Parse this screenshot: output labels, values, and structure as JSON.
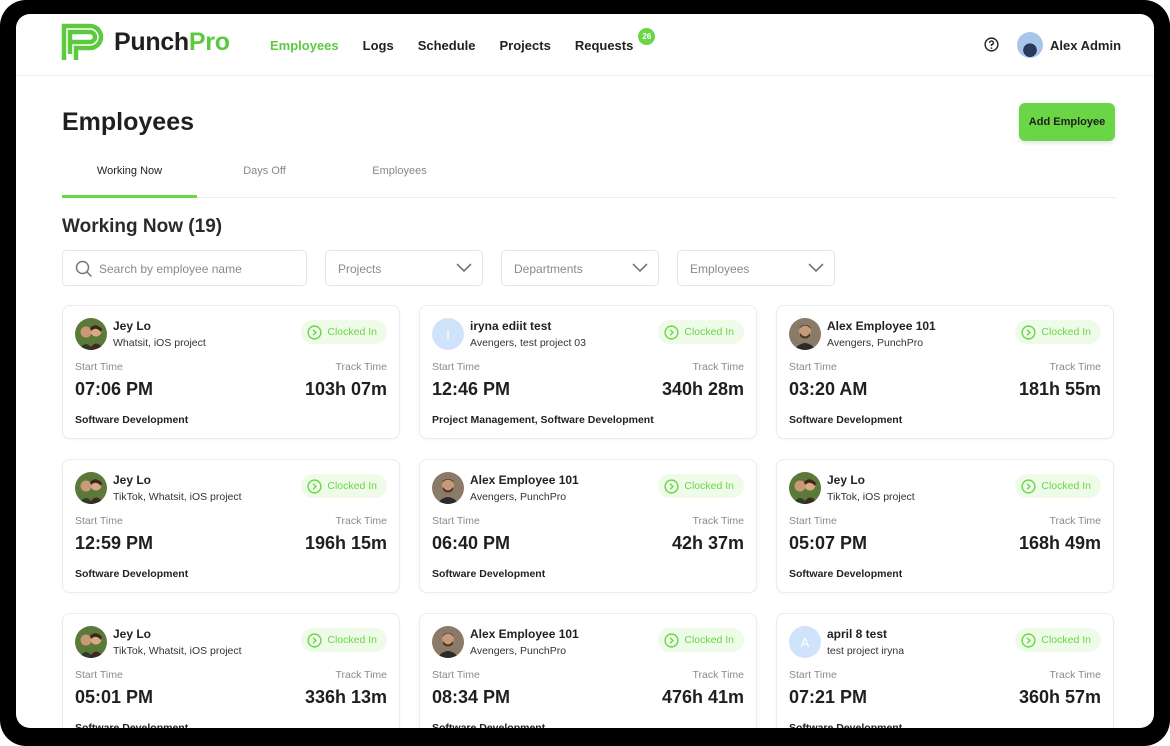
{
  "brand": {
    "name_a": "Punch",
    "name_b": "Pro"
  },
  "nav": {
    "items": [
      "Employees",
      "Logs",
      "Schedule",
      "Projects",
      "Requests"
    ],
    "requests_badge": "26"
  },
  "user": {
    "name": "Alex Admin"
  },
  "page": {
    "title": "Employees",
    "add_button": "Add Employee"
  },
  "tabs": [
    "Working Now",
    "Days Off",
    "Employees"
  ],
  "section": {
    "title": "Working Now (19)"
  },
  "filters": {
    "search_placeholder": "Search by employee name",
    "projects": "Projects",
    "departments": "Departments",
    "employees": "Employees"
  },
  "labels": {
    "start_time": "Start Time",
    "track_time": "Track Time",
    "status": "Clocked In"
  },
  "colors": {
    "accent": "#6ad646",
    "status_bg": "#eefbe9",
    "brand_green": "#5cc93f"
  },
  "cards": [
    {
      "name": "Jey Lo",
      "projects": "Whatsit, iOS project",
      "start": "07:06 PM",
      "track": "103h 07m",
      "dept": "Software Development",
      "avatar": "photo-couple"
    },
    {
      "name": "iryna ediit test",
      "projects": "Avengers, test project 03",
      "start": "12:46 PM",
      "track": "340h 28m",
      "dept": "Project Management, Software Development",
      "avatar": "letter",
      "initial": "I"
    },
    {
      "name": "Alex Employee 101",
      "projects": "Avengers, PunchPro",
      "start": "03:20 AM",
      "track": "181h 55m",
      "dept": "Software Development",
      "avatar": "photo-man"
    },
    {
      "name": "Jey Lo",
      "projects": "TikTok, Whatsit, iOS project",
      "start": "12:59 PM",
      "track": "196h 15m",
      "dept": "Software Development",
      "avatar": "photo-couple"
    },
    {
      "name": "Alex Employee 101",
      "projects": "Avengers, PunchPro",
      "start": "06:40 PM",
      "track": "42h 37m",
      "dept": "Software Development",
      "avatar": "photo-man"
    },
    {
      "name": "Jey Lo",
      "projects": "TikTok, iOS project",
      "start": "05:07 PM",
      "track": "168h 49m",
      "dept": "Software Development",
      "avatar": "photo-couple"
    },
    {
      "name": "Jey Lo",
      "projects": "TikTok, Whatsit, iOS project",
      "start": "05:01 PM",
      "track": "336h 13m",
      "dept": "Software Development",
      "avatar": "photo-couple"
    },
    {
      "name": "Alex Employee 101",
      "projects": "Avengers, PunchPro",
      "start": "08:34 PM",
      "track": "476h 41m",
      "dept": "Software Development",
      "avatar": "photo-man"
    },
    {
      "name": "april 8 test",
      "projects": "test project iryna",
      "start": "07:21 PM",
      "track": "360h 57m",
      "dept": "Software Development",
      "avatar": "letter",
      "initial": "A"
    }
  ]
}
